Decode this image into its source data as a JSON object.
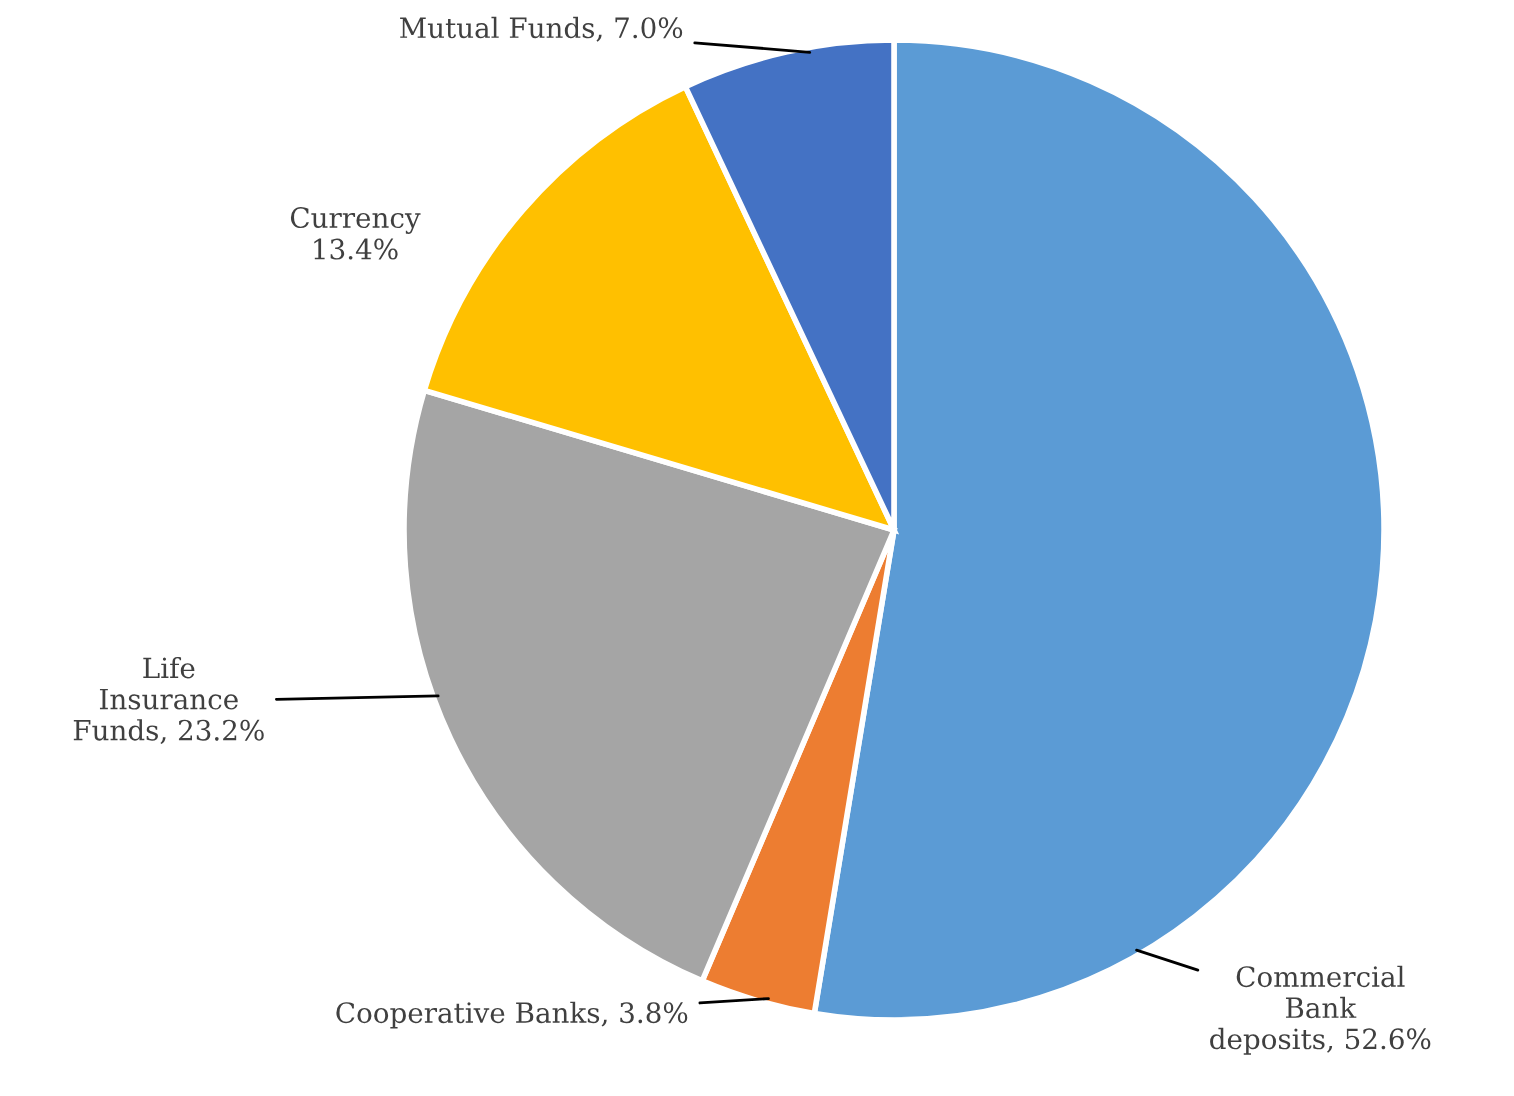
{
  "chart_data": {
    "type": "pie",
    "categories": [
      "Commercial\nBank\ndeposits",
      "Cooperative Banks",
      "Life\nInsurance\nFunds",
      "Currency",
      "Mutual Funds"
    ],
    "values": [
      52.6,
      3.8,
      23.2,
      13.4,
      7.0
    ],
    "value_labels": [
      "52.6%",
      "3.8%",
      "23.2%",
      "13.4%",
      "7.0%"
    ],
    "colors": [
      "#5b9bd5",
      "#ed7d31",
      "#a5a5a5",
      "#ffc000",
      "#4472c4"
    ],
    "legend": false
  }
}
